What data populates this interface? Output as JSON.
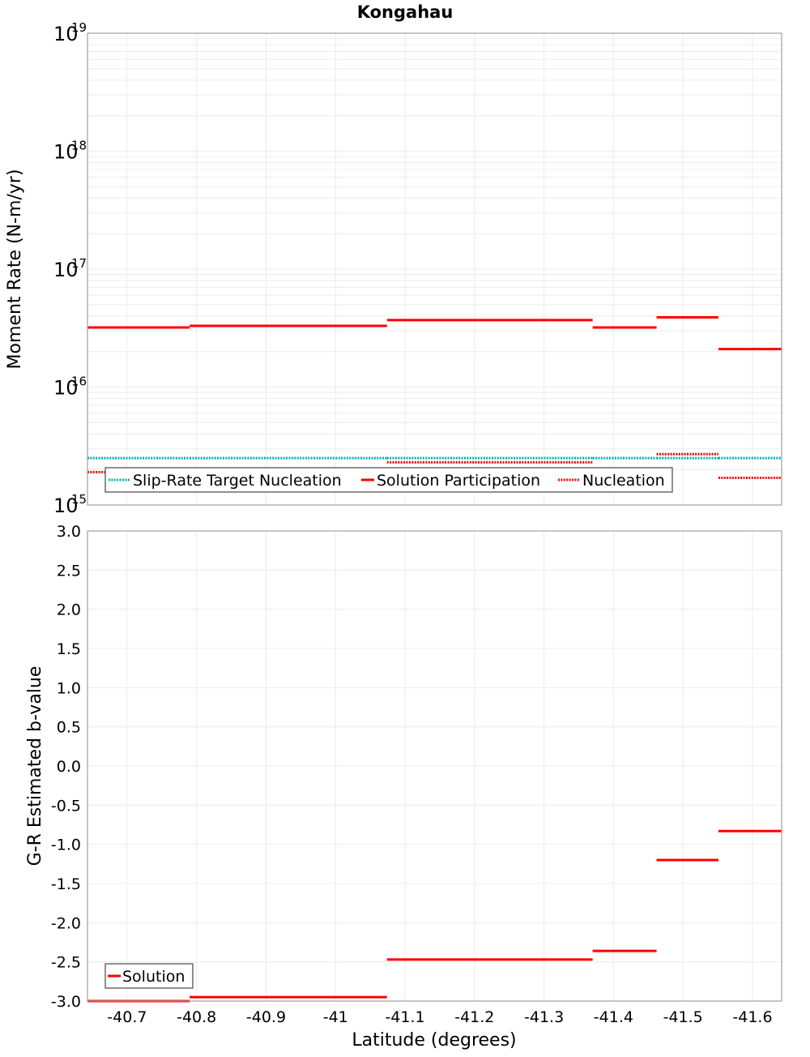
{
  "title": "Kongahau",
  "colors": {
    "solution": "#ff0000",
    "nucleation": "#ff0000",
    "target": "#00b0b0",
    "grid": "#e8e8e8",
    "frame": "#a0a0a0"
  },
  "chart_data": [
    {
      "type": "line",
      "title": "Kongahau",
      "xlabel": "Latitude (degrees)",
      "ylabel": "Moment Rate (N-m/yr)",
      "yscale": "log",
      "ylim": [
        1000000000000000.0,
        1e+19
      ],
      "xlim": [
        -40.643,
        -41.642
      ],
      "y_ticks": [
        {
          "base": "10",
          "exp": "19"
        },
        {
          "base": "10",
          "exp": "18"
        },
        {
          "base": "10",
          "exp": "17"
        },
        {
          "base": "10",
          "exp": "16"
        },
        {
          "base": "10",
          "exp": "15"
        }
      ],
      "grid": true,
      "legend_position": "lower-left inside",
      "legend": [
        "Slip-Rate Target Nucleation",
        "Solution Participation",
        "Nucleation"
      ],
      "bin_edges": [
        -40.643,
        -40.79,
        -41.074,
        -41.37,
        -41.462,
        -41.551,
        -41.642
      ],
      "series": [
        {
          "name": "Slip-Rate Target Nucleation",
          "style": "dotted",
          "color": "#00b0b0",
          "values": [
            2500000000000000.0,
            2500000000000000.0,
            2500000000000000.0,
            2500000000000000.0,
            2500000000000000.0,
            2500000000000000.0
          ]
        },
        {
          "name": "Solution Participation",
          "style": "solid",
          "color": "#ff0000",
          "values": [
            3.2e+16,
            3.3e+16,
            3.7e+16,
            3.2e+16,
            3.9e+16,
            2.1e+16
          ]
        },
        {
          "name": "Nucleation",
          "style": "dotted",
          "color": "#ff0000",
          "values": [
            1900000000000000.0,
            1950000000000000.0,
            2300000000000000.0,
            1950000000000000.0,
            2700000000000000.0,
            1700000000000000.0
          ]
        }
      ]
    },
    {
      "type": "line",
      "title": "",
      "xlabel": "Latitude (degrees)",
      "ylabel": "G-R Estimated b-value",
      "ylim": [
        -3.0,
        3.0
      ],
      "xlim": [
        -40.643,
        -41.642
      ],
      "y_ticks": [
        "3.0",
        "2.5",
        "2.0",
        "1.5",
        "1.0",
        "0.5",
        "0.0",
        "-0.5",
        "-1.0",
        "-1.5",
        "-2.0",
        "-2.5",
        "-3.0"
      ],
      "x_ticks": [
        "-40.7",
        "-40.8",
        "-40.9",
        "-41",
        "-41.1",
        "-41.2",
        "-41.3",
        "-41.4",
        "-41.5",
        "-41.6"
      ],
      "grid": true,
      "legend_position": "lower-left inside",
      "legend": [
        "Solution"
      ],
      "bin_edges": [
        -40.643,
        -40.79,
        -41.074,
        -41.37,
        -41.462,
        -41.551,
        -41.642
      ],
      "series": [
        {
          "name": "Solution",
          "style": "solid",
          "color": "#ff0000",
          "values": [
            -3.0,
            -2.95,
            -2.47,
            -2.36,
            -1.2,
            -0.83
          ]
        }
      ]
    }
  ]
}
